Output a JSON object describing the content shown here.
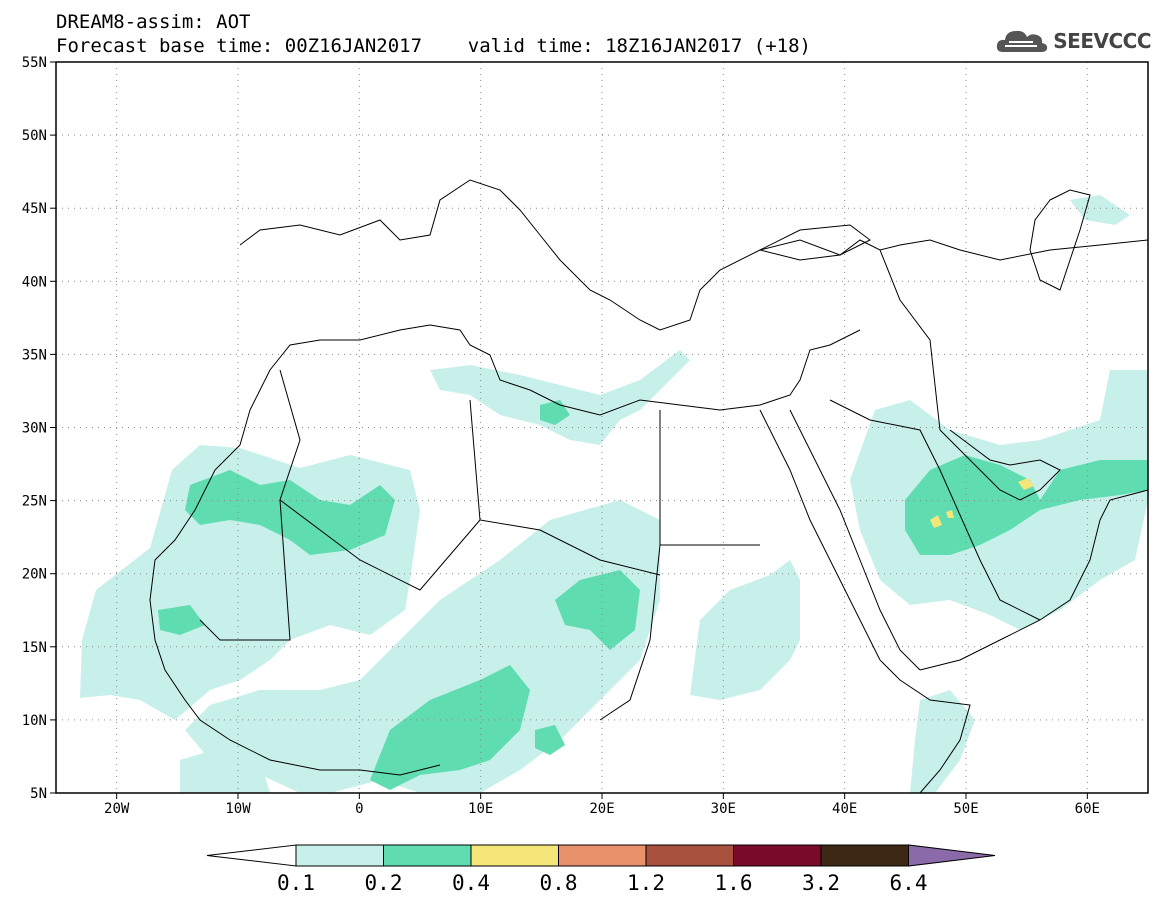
{
  "header": {
    "title_line1": "DREAM8-assim: AOT",
    "title_line2": "Forecast base time: 00Z16JAN2017    valid time: 18Z16JAN2017 (+18)",
    "logo_text": "SEEVCCC"
  },
  "map": {
    "lat_labels": [
      "55N",
      "50N",
      "45N",
      "40N",
      "35N",
      "30N",
      "25N",
      "20N",
      "15N",
      "10N",
      "5N"
    ],
    "lon_labels": [
      "20W",
      "10W",
      "0",
      "10E",
      "20E",
      "30E",
      "40E",
      "50E",
      "60E"
    ],
    "lon_range": [
      -25,
      65
    ],
    "lat_range": [
      5,
      55
    ],
    "gridlines": true,
    "field": "AOT"
  },
  "colorbar": {
    "levels": [
      "0.1",
      "0.2",
      "0.4",
      "0.8",
      "1.2",
      "1.6",
      "3.2",
      "6.4"
    ],
    "colors": [
      "#ffffff",
      "#c8f0ea",
      "#5fdcb0",
      "#f5e67a",
      "#e8916a",
      "#a8503e",
      "#7a0a2a",
      "#3c2815",
      "#8a6aa8"
    ]
  }
}
